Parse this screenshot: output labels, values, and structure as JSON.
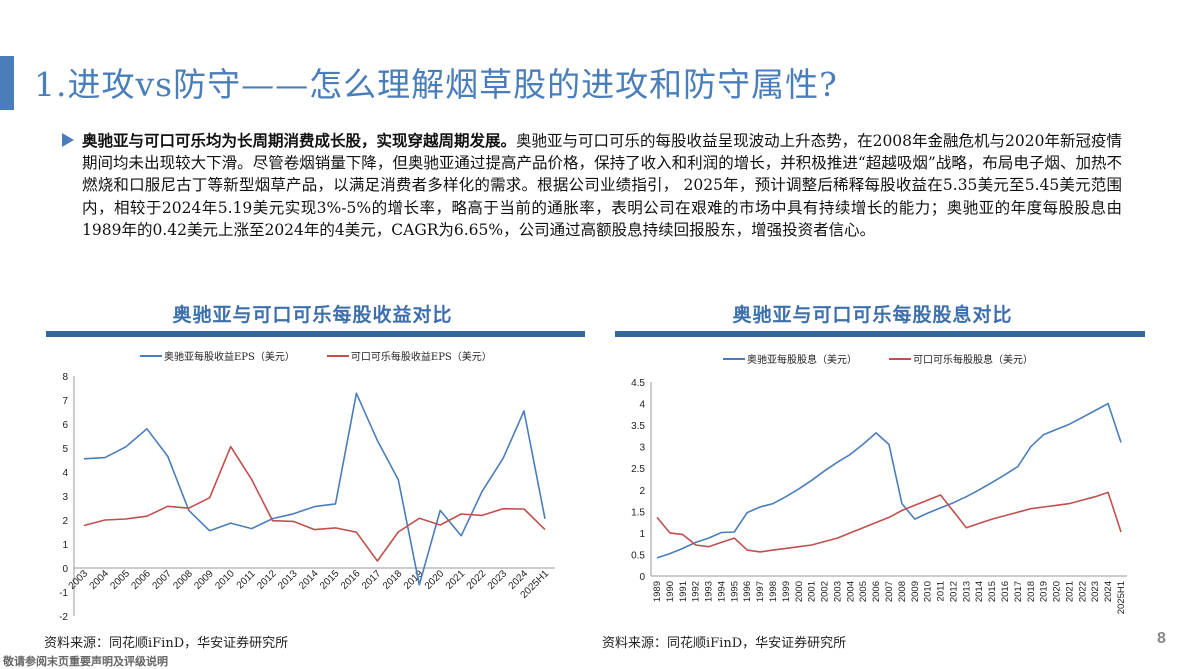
{
  "header": {
    "title": "1.进攻vs防守——怎么理解烟草股的进攻和防守属性?"
  },
  "body": {
    "bullet_bold": "奥驰亚与可口可乐均为长周期消费成长股，实现穿越周期发展。",
    "bullet_text": "奥驰亚与可口可乐的每股收益呈现波动上升态势，在2008年金融危机与2020年新冠疫情期间均未出现较大下滑。尽管卷烟销量下降，但奥驰亚通过提高产品价格，保持了收入和利润的增长，并积极推进“超越吸烟”战略，布局电子烟、加热不燃烧和口服尼古丁等新型烟草产品，以满足消费者多样化的需求。根据公司业绩指引， 2025年，预计调整后稀释每股收益在5.35美元至5.45美元范围内，相较于2024年5.19美元实现3%-5%的增长率，略高于当前的通胀率，表明公司在艰难的市场中具有持续增长的能力；奥驰亚的年度每股股息由1989年的0.42美元上涨至2024年的4美元，CAGR为6.65%，公司通过高额股息持续回报股东，增强投资者信心。"
  },
  "charts": {
    "left": {
      "title": "奥驰亚与可口可乐每股收益对比",
      "legend": [
        "奥驰亚每股收益EPS（美元）",
        "可口可乐每股收益EPS（美元）"
      ],
      "source": "资料来源：同花顺iFinD，华安证券研究所"
    },
    "right": {
      "title": "奥驰亚与可口可乐每股股息对比",
      "legend": [
        "奥驰亚每股股息（美元）",
        "可口可乐每股股息（美元）"
      ],
      "source": "资料来源：同花顺iFinD，华安证券研究所"
    }
  },
  "chart_data": [
    {
      "type": "line",
      "title": "奥驰亚与可口可乐每股收益对比",
      "xlabel": "",
      "ylabel": "",
      "ylim": [
        -2,
        8
      ],
      "yticks": [
        -2,
        -1,
        0,
        1,
        2,
        3,
        4,
        5,
        6,
        7,
        8
      ],
      "grid": false,
      "legend_position": "top",
      "categories": [
        "2003",
        "2004",
        "2005",
        "2006",
        "2007",
        "2008",
        "2009",
        "2010",
        "2011",
        "2012",
        "2013",
        "2014",
        "2015",
        "2016",
        "2017",
        "2018",
        "2019",
        "2020",
        "2021",
        "2022",
        "2023",
        "2024",
        "2025H1"
      ],
      "series": [
        {
          "name": "奥驰亚每股收益EPS（美元）",
          "color": "#4a7ebb",
          "values": [
            4.55,
            4.6,
            5.05,
            5.8,
            4.65,
            2.4,
            1.55,
            1.87,
            1.64,
            2.06,
            2.26,
            2.56,
            2.67,
            7.28,
            5.31,
            3.68,
            -0.7,
            2.4,
            1.34,
            3.19,
            4.57,
            6.54,
            2.05
          ]
        },
        {
          "name": "可口可乐每股收益EPS（美元）",
          "color": "#c0504d",
          "values": [
            1.77,
            2.0,
            2.04,
            2.16,
            2.57,
            2.49,
            2.93,
            5.06,
            3.69,
            1.97,
            1.94,
            1.6,
            1.67,
            1.49,
            0.29,
            1.5,
            2.07,
            1.79,
            2.25,
            2.19,
            2.47,
            2.46,
            1.6
          ]
        }
      ]
    },
    {
      "type": "line",
      "title": "奥驰亚与可口可乐每股股息对比",
      "xlabel": "",
      "ylabel": "",
      "ylim": [
        0,
        4.5
      ],
      "yticks": [
        0,
        0.5,
        1,
        1.5,
        2,
        2.5,
        3,
        3.5,
        4,
        4.5
      ],
      "grid": false,
      "legend_position": "top",
      "categories": [
        "1989",
        "1990",
        "1991",
        "1992",
        "1993",
        "1994",
        "1995",
        "1996",
        "1997",
        "1998",
        "1999",
        "2000",
        "2001",
        "2002",
        "2003",
        "2004",
        "2005",
        "2006",
        "2007",
        "2008",
        "2009",
        "2010",
        "2011",
        "2012",
        "2013",
        "2014",
        "2015",
        "2016",
        "2017",
        "2018",
        "2019",
        "2020",
        "2021",
        "2022",
        "2023",
        "2024",
        "2025H1"
      ],
      "series": [
        {
          "name": "奥驰亚每股股息（美元）",
          "color": "#4a7ebb",
          "values": [
            0.42,
            0.52,
            0.64,
            0.78,
            0.88,
            1.01,
            1.02,
            1.47,
            1.6,
            1.68,
            1.84,
            2.02,
            2.22,
            2.44,
            2.64,
            2.82,
            3.06,
            3.32,
            3.05,
            1.68,
            1.32,
            1.46,
            1.58,
            1.7,
            1.84,
            2.0,
            2.17,
            2.35,
            2.54,
            3.0,
            3.28,
            3.4,
            3.52,
            3.68,
            3.84,
            4.0,
            3.1
          ]
        },
        {
          "name": "可口可乐每股股息（美元）",
          "color": "#c0504d",
          "values": [
            1.36,
            1.0,
            0.96,
            0.72,
            0.68,
            0.78,
            0.88,
            0.6,
            0.56,
            0.6,
            0.64,
            0.68,
            0.72,
            0.8,
            0.88,
            1.0,
            1.12,
            1.24,
            1.36,
            1.52,
            1.64,
            1.76,
            1.88,
            1.5,
            1.12,
            1.22,
            1.32,
            1.4,
            1.48,
            1.56,
            1.6,
            1.64,
            1.68,
            1.76,
            1.84,
            1.94,
            1.02
          ]
        }
      ]
    }
  ],
  "footer": {
    "disclaimer": "敬请参阅末页重要声明及评级说明",
    "page_number": "8"
  }
}
